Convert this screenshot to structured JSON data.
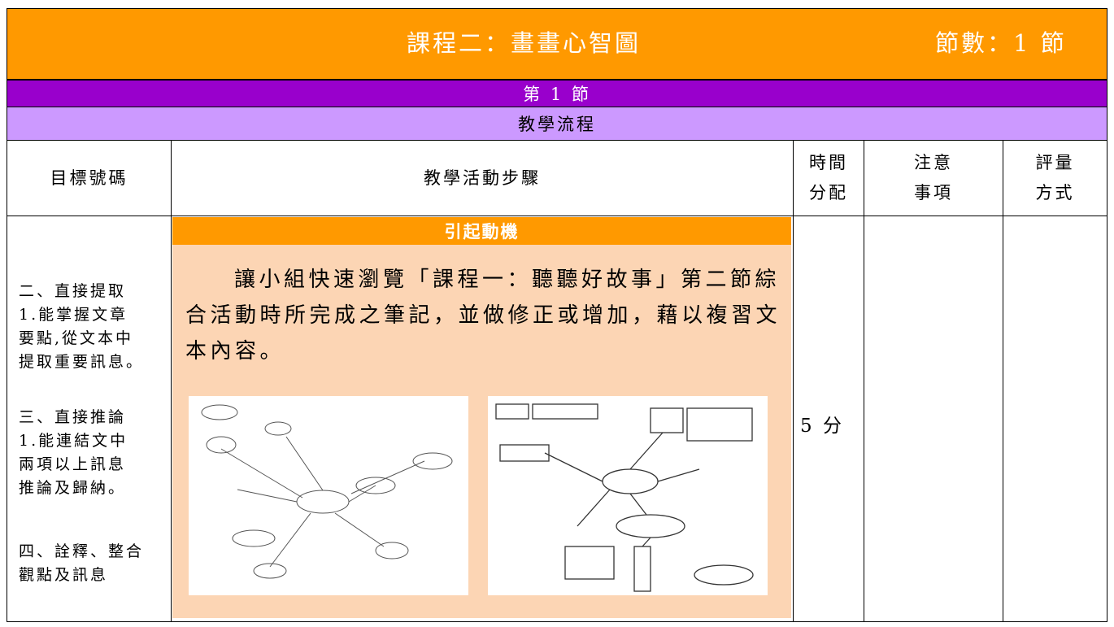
{
  "header": {
    "title": "課程二：畫畫心智圖",
    "sessions": "節數：1 節"
  },
  "session": "第 1 節",
  "section": "教學流程",
  "table": {
    "headers": [
      [
        "目標號碼"
      ],
      [
        "教學活動步驟"
      ],
      [
        "時間",
        "分配"
      ],
      [
        "注意",
        "事項"
      ],
      [
        "評量",
        "方式"
      ]
    ],
    "goals": [
      [
        "二、直接提取",
        "1.能掌握文章",
        "要點,從文本中",
        "提取重要訊息。"
      ],
      [
        "三、直接推論",
        "1.能連結文中",
        "兩項以上訊息",
        "推論及歸納。"
      ],
      [
        "四、詮釋、整合",
        "觀點及訊息"
      ]
    ],
    "activity": {
      "title": "引起動機",
      "text": "讓小組快速瀏覽「課程一：聽聽好故事」第二節綜合活動時所完成之筆記，並做修正或增加，藉以複習文本內容。"
    },
    "time": "5 分"
  }
}
